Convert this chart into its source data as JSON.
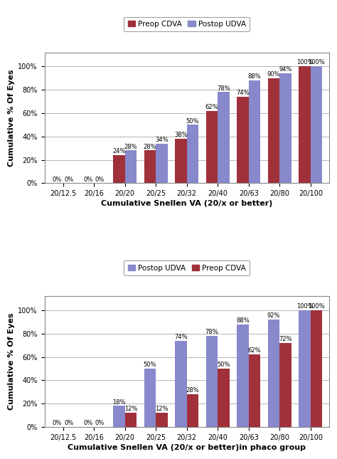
{
  "chart1": {
    "xlabel": "Cumulative Snellen VA (20/x or better)",
    "ylabel": "Cumulative % Of Eyes",
    "categories": [
      "20/12.5",
      "20/16",
      "20/20",
      "20/25",
      "20/32",
      "20/40",
      "20/63",
      "20/80",
      "20/100"
    ],
    "preop_cdva": [
      0,
      0,
      24,
      28,
      38,
      62,
      74,
      90,
      100
    ],
    "postop_udva": [
      0,
      0,
      28,
      34,
      50,
      78,
      88,
      94,
      100
    ],
    "legend_labels": [
      "Preop CDVA",
      "Postop UDVA"
    ],
    "bar_color_preop": "#A0303A",
    "bar_color_postop": "#8888CC"
  },
  "chart2": {
    "xlabel": "Cumulative Snellen VA (20/x or better)in phaco group",
    "ylabel": "Cumulative % Of Eyes",
    "categories": [
      "20/12.5",
      "20/16",
      "20/20",
      "20/25",
      "20/32",
      "20/40",
      "20/63",
      "20/80",
      "20/100"
    ],
    "postop_udva": [
      0,
      0,
      18,
      50,
      74,
      78,
      88,
      92,
      100
    ],
    "preop_cdva": [
      0,
      0,
      12,
      12,
      28,
      50,
      62,
      72,
      100
    ],
    "legend_labels": [
      "Postop UDVA",
      "Preop CDVA"
    ],
    "bar_color_postop": "#8888CC",
    "bar_color_preop": "#A0303A"
  },
  "background_color": "#FFFFFF",
  "plot_bg_color": "#FFFFFF",
  "grid_color": "#AAAAAA",
  "font_size_xlabel": 8,
  "font_size_ylabel": 8,
  "font_size_tick": 7,
  "font_size_bar": 6,
  "font_size_legend": 7.5
}
